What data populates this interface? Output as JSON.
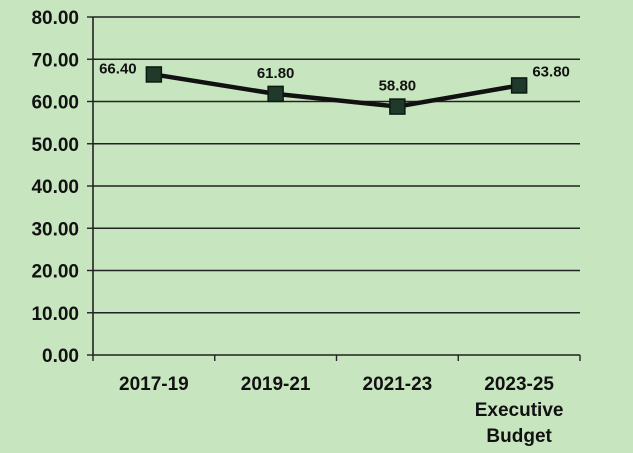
{
  "chart_data": {
    "type": "line",
    "categories": [
      [
        "2017-19"
      ],
      [
        "2019-21"
      ],
      [
        "2021-23"
      ],
      [
        "2023-25",
        "Executive",
        "Budget"
      ]
    ],
    "values": [
      66.4,
      61.8,
      58.8,
      63.8
    ],
    "data_labels": [
      "66.40",
      "61.80",
      "58.80",
      "63.80"
    ],
    "y_ticks": [
      "0.00",
      "10.00",
      "20.00",
      "30.00",
      "40.00",
      "50.00",
      "60.00",
      "70.00",
      "80.00"
    ],
    "ylim": [
      0,
      80
    ],
    "title": "",
    "xlabel": "",
    "ylabel": "",
    "grid": true,
    "legend": "none",
    "colors": {
      "background": "#c7e6bf",
      "line": "#111111",
      "marker": "#1f3a2a",
      "grid": "#222222"
    }
  }
}
